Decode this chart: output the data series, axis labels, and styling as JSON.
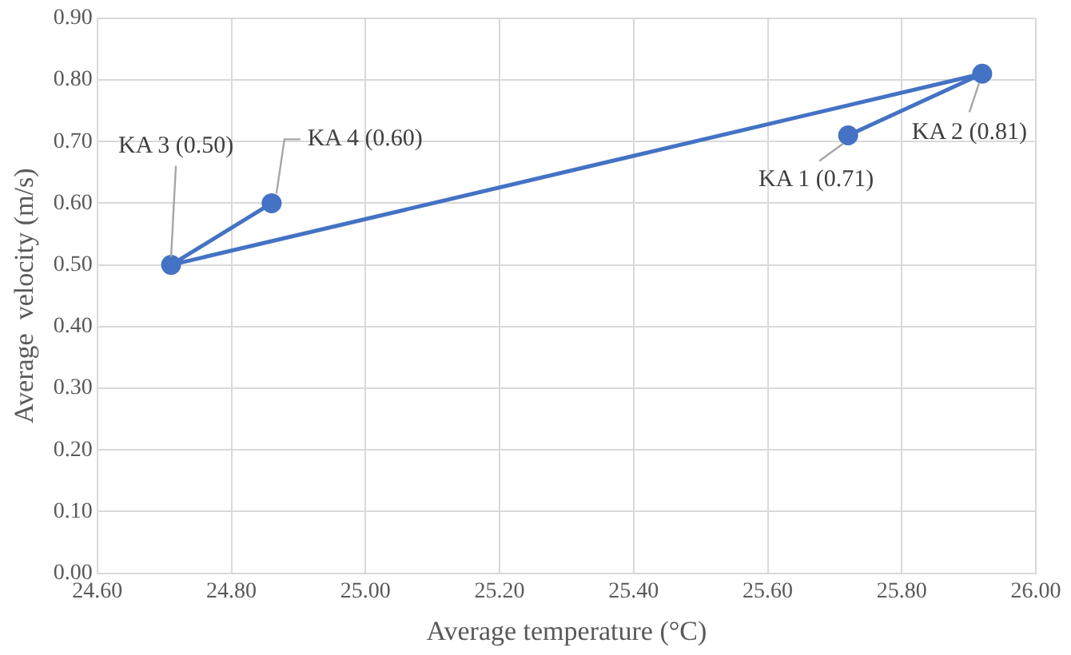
{
  "chart_data": {
    "type": "line",
    "xlabel": "Average temperature (°C)",
    "ylabel": "Average  velocity (m/s)",
    "x": [
      25.72,
      25.92,
      24.71,
      24.86
    ],
    "series": [
      {
        "color": "#4472c4",
        "values": [
          0.71,
          0.81,
          0.5,
          0.6
        ]
      }
    ],
    "xlim": [
      24.6,
      26.0
    ],
    "xticks": [
      {
        "value": 24.6,
        "label": "24.60"
      },
      {
        "value": 24.8,
        "label": "24.80"
      },
      {
        "value": 25.0,
        "label": "25.00"
      },
      {
        "value": 25.2,
        "label": "25.20"
      },
      {
        "value": 25.4,
        "label": "25.40"
      },
      {
        "value": 25.6,
        "label": "25.60"
      },
      {
        "value": 25.8,
        "label": "25.80"
      },
      {
        "value": 26.0,
        "label": "26.00"
      }
    ],
    "ylim": [
      0,
      0.9
    ],
    "yticks": [
      {
        "value": 0,
        "label": "0.00"
      },
      {
        "value": 0.1,
        "label": "0.10"
      },
      {
        "value": 0.2,
        "label": "0.20"
      },
      {
        "value": 0.3,
        "label": "0.30"
      },
      {
        "value": 0.4,
        "label": "0.40"
      },
      {
        "value": 0.5,
        "label": "0.50"
      },
      {
        "value": 0.6,
        "label": "0.60"
      },
      {
        "value": 0.7,
        "label": "0.70"
      },
      {
        "value": 0.8,
        "label": "0.80"
      },
      {
        "value": 0.9,
        "label": "0.90"
      }
    ],
    "annotations": [
      {
        "text": "KA 1 (0.71)",
        "x": 25.72,
        "y": 0.71
      },
      {
        "text": "KA 2 (0.81)",
        "x": 25.92,
        "y": 0.81
      },
      {
        "text": "KA 3 (0.50)",
        "x": 24.71,
        "y": 0.5
      },
      {
        "text": "KA 4 (0.60)",
        "x": 24.86,
        "y": 0.6
      }
    ],
    "grid": true,
    "legend": false,
    "marker": "circle",
    "line_style": "solid"
  }
}
